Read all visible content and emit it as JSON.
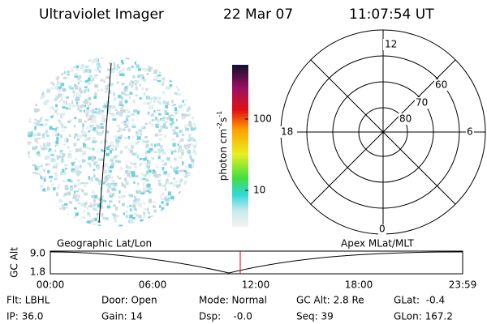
{
  "header": {
    "instrument": "Ultraviolet Imager",
    "date": "22 Mar 07",
    "time": "11:07:54 UT"
  },
  "colorbar": {
    "ticks": [
      "100",
      "10"
    ],
    "unit": [
      "photon cm",
      "-2",
      "s",
      "-1"
    ]
  },
  "polar": {
    "mlt_labels": [
      "12",
      "18",
      "6",
      "0"
    ],
    "lat_labels": [
      "60",
      "70",
      "80"
    ]
  },
  "altitude_plot": {
    "y_axis_label": "GC Alt",
    "y_labels": [
      "9.0",
      "1.8"
    ],
    "left_title": "Geographic Lat/Lon",
    "right_title": "Apex MLat/MLT",
    "x_labels": [
      "00:00",
      "06:00",
      "12:00",
      "18:00",
      "23:59"
    ]
  },
  "info": {
    "rows": [
      [
        "Flt: LBHL",
        "Door: Open",
        "Mode: Normal",
        "GC Alt: 2.8 Re",
        "GLat:  -0.4"
      ],
      [
        "IP: 36.0",
        "Gain: 14",
        "Dsp:    -0.0",
        "Seq: 39",
        "GLon: 167.2"
      ]
    ]
  }
}
